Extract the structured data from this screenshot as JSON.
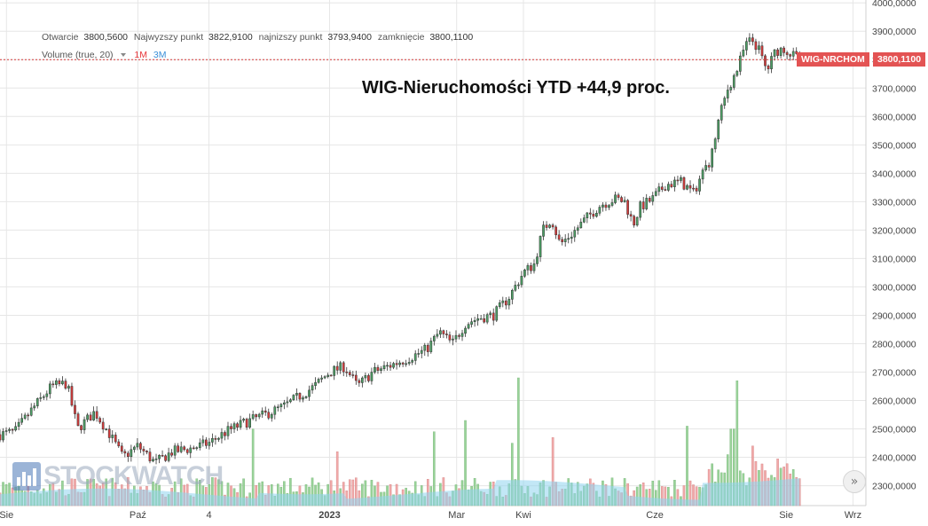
{
  "legend": {
    "open_label": "Otwarcie",
    "open_value": "3800,5600",
    "high_label": "Najwyzszy punkt",
    "high_value": "3822,9100",
    "low_label": "najnizszy punkt",
    "low_value": "3793,9400",
    "close_label": "zamknięcie",
    "close_value": "3800,1100",
    "volume_label": "Volume (true, 20)",
    "range_1m": "1M",
    "range_3m": "3M"
  },
  "headline": "WIG-Nieruchomości YTD +44,9 proc.",
  "symbol_tag": "WIG-NRCHOM",
  "price_tag": "3800,1100",
  "watermark": "STOCKWATCH",
  "scroll_button_icon": "double-chevron-right-icon",
  "colors": {
    "up_candle": "#4c9e64",
    "down_candle": "#d63b3b",
    "vol_up": "#8fcf8f",
    "vol_down": "#f0a0a0",
    "vol_ma": "#8fd3ee",
    "price_line": "#d63b3b",
    "tag_bg": "#e35353",
    "grid": "#e6e6e6"
  },
  "chart_data": {
    "type": "candlestick",
    "symbol": "WIG-NRCHOM",
    "ylim": [
      2230,
      4010
    ],
    "y_ticks": [
      2300,
      2400,
      2500,
      2600,
      2700,
      2800,
      2900,
      3000,
      3100,
      3200,
      3300,
      3400,
      3500,
      3600,
      3700,
      3800,
      3900,
      4000
    ],
    "y_tick_labels": [
      "2300,0000",
      "2400,0000",
      "2500,0000",
      "2600,0000",
      "2700,0000",
      "2800,0000",
      "2900,0000",
      "3000,0000",
      "3100,0000",
      "3200,0000",
      "3300,0000",
      "3400,0000",
      "3500,0000",
      "3600,0000",
      "3700,0000",
      "3800,0000",
      "3900,0000",
      "4000,0000"
    ],
    "x_labels": [
      {
        "label": "Sie",
        "day": 3
      },
      {
        "label": "Paź",
        "day": 64
      },
      {
        "label": "4",
        "day": 97
      },
      {
        "label": "2023",
        "day": 153
      },
      {
        "label": "Mar",
        "day": 212
      },
      {
        "label": "Kwi",
        "day": 243
      },
      {
        "label": "Cze",
        "day": 304
      },
      {
        "label": "Sie",
        "day": 365
      },
      {
        "label": "Wrz",
        "day": 396
      }
    ],
    "x_domain": [
      0,
      402
    ],
    "last_close": 3800.11,
    "candles_anchor_points": [
      [
        0,
        2480
      ],
      [
        7,
        2490
      ],
      [
        15,
        2570
      ],
      [
        24,
        2650
      ],
      [
        31,
        2660
      ],
      [
        36,
        2500
      ],
      [
        44,
        2560
      ],
      [
        51,
        2480
      ],
      [
        57,
        2400
      ],
      [
        64,
        2440
      ],
      [
        72,
        2380
      ],
      [
        80,
        2420
      ],
      [
        88,
        2430
      ],
      [
        97,
        2450
      ],
      [
        105,
        2490
      ],
      [
        113,
        2520
      ],
      [
        123,
        2550
      ],
      [
        132,
        2580
      ],
      [
        138,
        2610
      ],
      [
        146,
        2650
      ],
      [
        153,
        2700
      ],
      [
        160,
        2720
      ],
      [
        166,
        2650
      ],
      [
        173,
        2700
      ],
      [
        180,
        2720
      ],
      [
        190,
        2750
      ],
      [
        198,
        2780
      ],
      [
        204,
        2840
      ],
      [
        210,
        2800
      ],
      [
        216,
        2870
      ],
      [
        222,
        2890
      ],
      [
        229,
        2900
      ],
      [
        236,
        2960
      ],
      [
        243,
        3050
      ],
      [
        248,
        3080
      ],
      [
        252,
        3200
      ],
      [
        256,
        3240
      ],
      [
        260,
        3150
      ],
      [
        266,
        3190
      ],
      [
        272,
        3240
      ],
      [
        279,
        3290
      ],
      [
        286,
        3310
      ],
      [
        290,
        3300
      ],
      [
        294,
        3220
      ],
      [
        297,
        3280
      ],
      [
        303,
        3310
      ],
      [
        309,
        3360
      ],
      [
        316,
        3370
      ],
      [
        322,
        3330
      ],
      [
        326,
        3400
      ],
      [
        330,
        3450
      ],
      [
        334,
        3600
      ],
      [
        338,
        3700
      ],
      [
        342,
        3760
      ],
      [
        346,
        3850
      ],
      [
        349,
        3870
      ],
      [
        352,
        3840
      ],
      [
        356,
        3760
      ],
      [
        360,
        3830
      ],
      [
        364,
        3840
      ],
      [
        367,
        3820
      ],
      [
        370,
        3805
      ],
      [
        372,
        3800.11
      ]
    ],
    "volume_ylim": [
      0,
      1000000
    ],
    "volume_spikes": [
      {
        "day": 117,
        "value": 540000
      },
      {
        "day": 157,
        "value": 380000
      },
      {
        "day": 201,
        "value": 520000
      },
      {
        "day": 216,
        "value": 600000
      },
      {
        "day": 238,
        "value": 440000
      },
      {
        "day": 241,
        "value": 900000
      },
      {
        "day": 256,
        "value": 480000
      },
      {
        "day": 319,
        "value": 560000
      },
      {
        "day": 340,
        "value": 540000
      },
      {
        "day": 342,
        "value": 880000
      },
      {
        "day": 349,
        "value": 420000
      }
    ]
  }
}
